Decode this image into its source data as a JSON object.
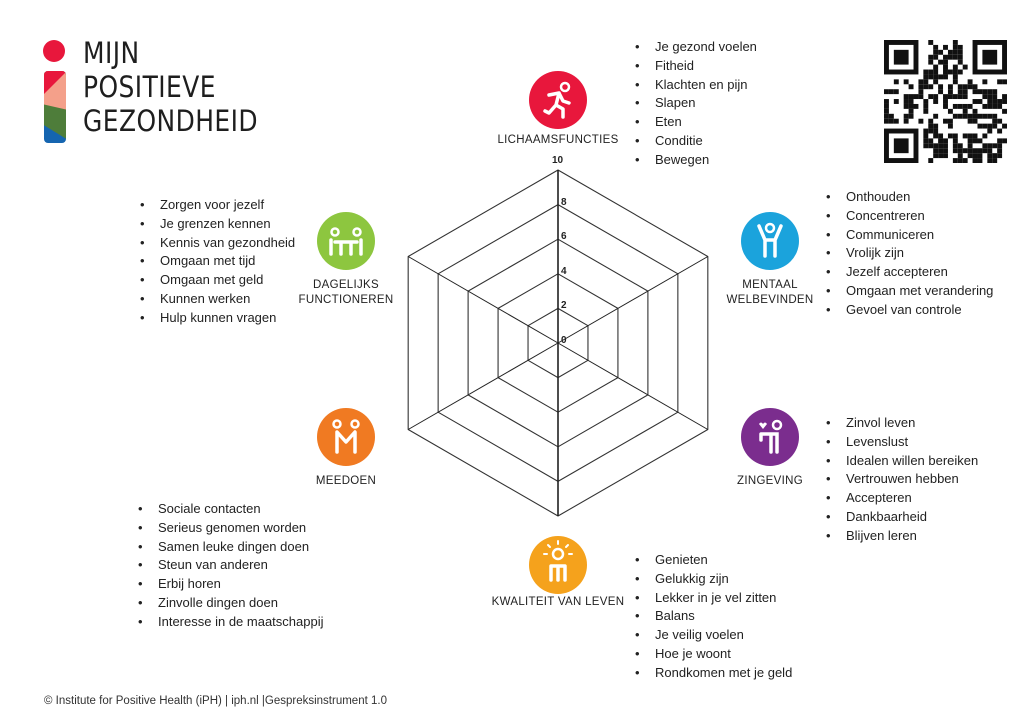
{
  "logo": {
    "lines": [
      "MIJN",
      "POSITIEVE",
      "GEZONDHEID"
    ],
    "colors": [
      "#e8173c",
      "#f4a08a",
      "#4e7d3a",
      "#1565b0"
    ]
  },
  "chart_data": {
    "type": "radar",
    "axes": [
      "LICHAAMSFUNCTIES",
      "MENTAAL WELBEVINDEN",
      "ZINGEVING",
      "KWALITEIT VAN LEVEN",
      "MEEDOEN",
      "DAGELIJKS FUNCTIONEREN"
    ],
    "ticks": [
      "0",
      "2",
      "4",
      "6",
      "8",
      "10"
    ],
    "range": [
      0,
      10
    ],
    "grid": true,
    "values": []
  },
  "categories": [
    {
      "id": "lichaamsfuncties",
      "label": [
        "LICHAAMSFUNCTIES"
      ],
      "icon": "running-person-icon",
      "color": "#e8173c",
      "items": [
        "Je gezond voelen",
        "Fitheid",
        "Klachten en pijn",
        "Slapen",
        "Eten",
        "Conditie",
        "Bewegen"
      ]
    },
    {
      "id": "mentaal",
      "label": [
        "MENTAAL",
        "WELBEVINDEN"
      ],
      "icon": "person-arms-up-icon",
      "color": "#1ba3dc",
      "items": [
        "Onthouden",
        "Concentreren",
        "Communiceren",
        "Vrolijk zijn",
        "Jezelf accepteren",
        "Omgaan met verandering",
        "Gevoel van controle"
      ]
    },
    {
      "id": "zingeving",
      "label": [
        "ZINGEVING"
      ],
      "icon": "person-heart-icon",
      "color": "#7b2d8e",
      "items": [
        "Zinvol leven",
        "Levenslust",
        "Idealen willen bereiken",
        "Vertrouwen hebben",
        "Accepteren",
        "Dankbaarheid",
        "Blijven leren"
      ]
    },
    {
      "id": "kwaliteit",
      "label": [
        "KWALITEIT VAN LEVEN"
      ],
      "icon": "person-sun-icon",
      "color": "#f5a21c",
      "items": [
        "Genieten",
        "Gelukkig zijn",
        "Lekker in je vel zitten",
        "Balans",
        "Je veilig voelen",
        "Hoe je woont",
        "Rondkomen met je geld"
      ]
    },
    {
      "id": "meedoen",
      "label": [
        "MEEDOEN"
      ],
      "icon": "two-people-icon",
      "color": "#f07a22",
      "items": [
        "Sociale contacten",
        "Serieus genomen worden",
        "Samen leuke dingen doen",
        "Steun van anderen",
        "Erbij horen",
        "Zinvolle dingen doen",
        "Interesse in de maatschappij"
      ]
    },
    {
      "id": "dagelijks",
      "label": [
        "DAGELIJKS",
        "FUNCTIONEREN"
      ],
      "icon": "people-at-table-icon",
      "color": "#8dc63f",
      "items": [
        "Zorgen voor jezelf",
        "Je grenzen kennen",
        "Kennis van gezondheid",
        "Omgaan met tijd",
        "Omgaan met geld",
        "Kunnen werken",
        "Hulp kunnen vragen"
      ]
    }
  ],
  "qr": {
    "icon": "qr-code-icon"
  },
  "footer": "© Institute for Positive Health (iPH) | iph.nl |Gespreksinstrument 1.0"
}
